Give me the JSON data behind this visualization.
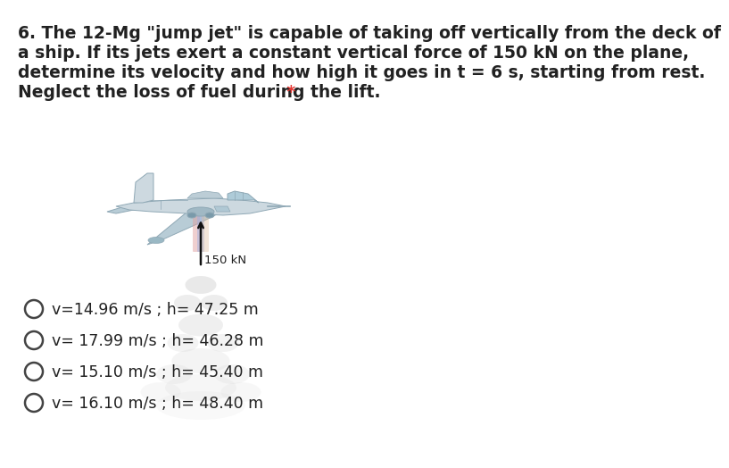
{
  "title_line1": "6. The 12-Mg \"jump jet\" is capable of taking off vertically from the deck of",
  "title_line2": "a ship. If its jets exert a constant vertical force of 150 kN on the plane,",
  "title_line3": "determine its velocity and how high it goes in t = 6 s, starting from rest.",
  "title_line4": "Neglect the loss of fuel during the lift.",
  "title_star": " *",
  "force_label": "150 kN",
  "options": [
    "v=14.96 m/s ; h= 47.25 m",
    "v= 17.99 m/s ; h= 46.28 m",
    "v= 15.10 m/s ; h= 45.40 m",
    "v= 16.10 m/s ; h= 48.40 m"
  ],
  "background_color": "#ffffff",
  "text_color": "#212121",
  "star_color": "#e53935",
  "option_fontsize": 12.5,
  "title_fontsize": 13.5,
  "body_color": "#cdd9e0",
  "body_edge_color": "#8fa8b5",
  "wing_color": "#b8ccd6",
  "cockpit_color": "#aecbd8",
  "smoke_color": "#d8d8d8"
}
